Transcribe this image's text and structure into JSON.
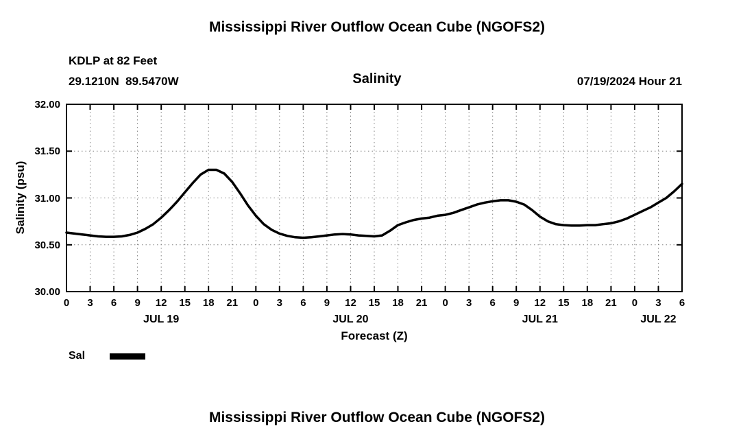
{
  "page": {
    "title_top": "Mississippi River Outflow Ocean Cube (NGOFS2)",
    "title_bottom": "Mississippi River Outflow Ocean Cube (NGOFS2)"
  },
  "header": {
    "station": "KDLP at 82 Feet",
    "coordinates": "29.1210N  89.5470W",
    "chart_title": "Salinity",
    "datetime": "07/19/2024 Hour 21"
  },
  "legend": {
    "label": "Sal"
  },
  "chart_data": {
    "type": "line",
    "title": "Salinity",
    "xlabel": "Forecast (Z)",
    "ylabel": "Salinity (psu)",
    "ylim": [
      30.0,
      32.0
    ],
    "yticks": [
      30.0,
      30.5,
      31.0,
      31.5,
      32.0
    ],
    "ytick_labels": [
      "30.00",
      "30.50",
      "31.00",
      "31.50",
      "32.00"
    ],
    "x_hours_range": [
      0,
      78
    ],
    "xtick_interval": 3,
    "xtick_labels": [
      "0",
      "3",
      "6",
      "9",
      "12",
      "15",
      "18",
      "21",
      "0",
      "3",
      "6",
      "9",
      "12",
      "15",
      "18",
      "21",
      "0",
      "3",
      "6",
      "9",
      "12",
      "15",
      "18",
      "21",
      "0",
      "3",
      "6"
    ],
    "day_labels": [
      {
        "label": "JUL 19",
        "hour": 12
      },
      {
        "label": "JUL 20",
        "hour": 36
      },
      {
        "label": "JUL 21",
        "hour": 60
      },
      {
        "label": "JUL 22",
        "hour": 75
      }
    ],
    "grid": true,
    "legend_position": "bottom-left",
    "line_color": "#000000",
    "series": [
      {
        "name": "Sal",
        "points": [
          [
            0,
            30.63
          ],
          [
            1,
            30.62
          ],
          [
            2,
            30.61
          ],
          [
            3,
            30.6
          ],
          [
            4,
            30.59
          ],
          [
            5,
            30.585
          ],
          [
            6,
            30.585
          ],
          [
            7,
            30.59
          ],
          [
            8,
            30.605
          ],
          [
            9,
            30.63
          ],
          [
            10,
            30.67
          ],
          [
            11,
            30.72
          ],
          [
            12,
            30.79
          ],
          [
            13,
            30.87
          ],
          [
            14,
            30.96
          ],
          [
            15,
            31.06
          ],
          [
            16,
            31.16
          ],
          [
            17,
            31.25
          ],
          [
            18,
            31.3
          ],
          [
            19,
            31.3
          ],
          [
            20,
            31.26
          ],
          [
            21,
            31.17
          ],
          [
            22,
            31.05
          ],
          [
            23,
            30.92
          ],
          [
            24,
            30.81
          ],
          [
            25,
            30.72
          ],
          [
            26,
            30.66
          ],
          [
            27,
            30.62
          ],
          [
            28,
            30.595
          ],
          [
            29,
            30.58
          ],
          [
            30,
            30.575
          ],
          [
            31,
            30.58
          ],
          [
            32,
            30.59
          ],
          [
            33,
            30.6
          ],
          [
            34,
            30.61
          ],
          [
            35,
            30.615
          ],
          [
            36,
            30.61
          ],
          [
            37,
            30.6
          ],
          [
            38,
            30.595
          ],
          [
            39,
            30.59
          ],
          [
            40,
            30.6
          ],
          [
            41,
            30.65
          ],
          [
            42,
            30.71
          ],
          [
            43,
            30.74
          ],
          [
            44,
            30.765
          ],
          [
            45,
            30.78
          ],
          [
            46,
            30.79
          ],
          [
            47,
            30.81
          ],
          [
            48,
            30.82
          ],
          [
            49,
            30.84
          ],
          [
            50,
            30.87
          ],
          [
            51,
            30.9
          ],
          [
            52,
            30.93
          ],
          [
            53,
            30.95
          ],
          [
            54,
            30.965
          ],
          [
            55,
            30.975
          ],
          [
            56,
            30.975
          ],
          [
            57,
            30.96
          ],
          [
            58,
            30.93
          ],
          [
            59,
            30.87
          ],
          [
            60,
            30.8
          ],
          [
            61,
            30.75
          ],
          [
            62,
            30.72
          ],
          [
            63,
            30.71
          ],
          [
            64,
            30.705
          ],
          [
            65,
            30.705
          ],
          [
            66,
            30.71
          ],
          [
            67,
            30.71
          ],
          [
            68,
            30.72
          ],
          [
            69,
            30.73
          ],
          [
            70,
            30.75
          ],
          [
            71,
            30.78
          ],
          [
            72,
            30.82
          ],
          [
            73,
            30.86
          ],
          [
            74,
            30.9
          ],
          [
            75,
            30.95
          ],
          [
            76,
            31.0
          ],
          [
            77,
            31.07
          ],
          [
            78,
            31.15
          ]
        ]
      }
    ]
  }
}
